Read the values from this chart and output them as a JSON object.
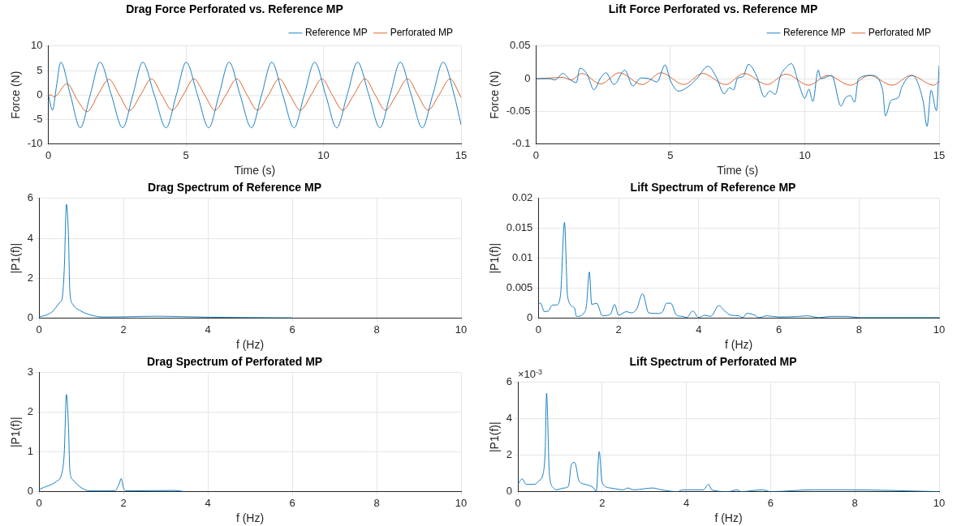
{
  "chart_data": [
    {
      "type": "line",
      "title": "Drag Force Perforated vs. Reference MP",
      "xlabel": "Time (s)",
      "ylabel": "Force (N)",
      "xlim": [
        0,
        15
      ],
      "xticks": [
        0,
        5,
        10,
        15
      ],
      "ylim": [
        -10,
        10
      ],
      "yticks": [
        -10,
        -5,
        0,
        5,
        10
      ],
      "grid": true,
      "legend": "top right",
      "series": [
        {
          "name": "Reference MP",
          "color": "#0072bd",
          "x": [
            0,
            0.15,
            0.3,
            0.45,
            0.8,
            1.16,
            1.52,
            1.88,
            2.29,
            2.7,
            3.07,
            3.43,
            3.85,
            4.28,
            4.65,
            5.01,
            5.42,
            5.83,
            6.2,
            6.57,
            6.97,
            7.38,
            7.75,
            8.12,
            8.52,
            8.93,
            9.3,
            9.68,
            10.08,
            10.48,
            10.86,
            11.24,
            11.65,
            12.05,
            12.42,
            12.79,
            13.19,
            13.59,
            13.97,
            14.35,
            14.75,
            15
          ],
          "values": [
            0,
            -3.1,
            2,
            6.7,
            0,
            -6.7,
            0,
            6.7,
            0,
            -6.7,
            0,
            6.7,
            0,
            -6.7,
            0,
            6.7,
            0,
            -6.7,
            0,
            6.7,
            0,
            -6.7,
            0,
            6.7,
            0,
            -6.7,
            0,
            6.7,
            0,
            -6.7,
            0,
            6.7,
            0,
            -6.7,
            0,
            6.7,
            0,
            -6.7,
            0,
            6.7,
            0,
            -6.1
          ]
        },
        {
          "name": "Perforated MP",
          "color": "#d95319",
          "x": [
            0,
            0.1,
            0.2,
            0.68,
            1.05,
            1.41,
            1.8,
            2.2,
            2.58,
            2.95,
            3.35,
            3.75,
            4.12,
            4.5,
            4.9,
            5.29,
            5.68,
            6.06,
            6.45,
            6.85,
            7.22,
            7.6,
            8.0,
            8.39,
            8.78,
            9.16,
            9.55,
            9.94,
            10.32,
            10.7,
            11.1,
            11.51,
            11.88,
            12.25,
            12.65,
            13.06,
            13.43,
            13.8,
            14.2,
            14.6,
            15
          ],
          "values": [
            0,
            0,
            -0.4,
            2.3,
            -1,
            -3.4,
            0,
            3.2,
            0,
            -3.2,
            0,
            3.3,
            0,
            -3.1,
            0,
            3.3,
            0,
            -3.1,
            0,
            3.3,
            0,
            -3.1,
            0,
            3.3,
            0,
            -3.1,
            0,
            3.3,
            0,
            -3.1,
            0,
            3.3,
            0,
            -3.1,
            0,
            3.3,
            0,
            -3.1,
            0,
            3.3,
            -0.5
          ]
        }
      ]
    },
    {
      "type": "line",
      "title": "Lift Force Perforated vs. Reference MP",
      "xlabel": "Time (s)",
      "ylabel": "Force (N)",
      "xlim": [
        0,
        15
      ],
      "xticks": [
        0,
        5,
        10,
        15
      ],
      "ylim": [
        -0.1,
        0.05
      ],
      "yticks": [
        -0.1,
        -0.05,
        0,
        0.05
      ],
      "grid": true,
      "legend": "top right",
      "series": [
        {
          "name": "Reference MP",
          "color": "#0072bd",
          "x": [
            0,
            0.5,
            0.7,
            1.0,
            1.25,
            1.5,
            1.63,
            1.9,
            2.15,
            2.4,
            2.6,
            2.9,
            3.3,
            3.6,
            3.9,
            4.2,
            4.5,
            4.8,
            5.0,
            5.3,
            5.7,
            6.0,
            6.4,
            6.7,
            7.0,
            7.2,
            7.35,
            7.5,
            7.7,
            7.9,
            8.2,
            8.5,
            8.7,
            8.9,
            9.1,
            9.3,
            9.5,
            9.8,
            10.0,
            10.15,
            10.3,
            10.5,
            10.6,
            11.0,
            11.35,
            11.5,
            11.7,
            11.85,
            12.0,
            12.5,
            12.9,
            13.0,
            13.2,
            13.5,
            13.6,
            14.0,
            14.4,
            14.55,
            14.7,
            14.9,
            15
          ],
          "values": [
            0,
            0,
            -0.002,
            0.008,
            -0.001,
            -0.006,
            0.016,
            0.007,
            -0.017,
            0.001,
            0.009,
            -0.009,
            0.013,
            -0.011,
            0.001,
            0,
            -0.005,
            0.021,
            -0.003,
            -0.019,
            -0.011,
            0.001,
            0.019,
            0.003,
            -0.023,
            -0.014,
            -0.017,
            0.001,
            0.003,
            0.022,
            0.005,
            -0.028,
            -0.019,
            -0.024,
            0.005,
            0.017,
            0.023,
            -0.011,
            -0.03,
            -0.016,
            -0.035,
            0.013,
            0,
            0.005,
            -0.042,
            -0.03,
            -0.026,
            -0.036,
            0,
            0.005,
            -0.018,
            -0.057,
            -0.034,
            -0.028,
            -0.014,
            0.005,
            -0.034,
            -0.073,
            -0.018,
            -0.049,
            0.02
          ]
        },
        {
          "name": "Perforated MP",
          "color": "#d95319",
          "x": [
            0,
            0.5,
            1.0,
            1.3,
            1.7,
            2.4,
            3.1,
            3.95,
            4.65,
            5.5,
            6.2,
            7.05,
            7.75,
            8.6,
            9.3,
            10.15,
            10.85,
            11.7,
            12.4,
            13.25,
            13.95,
            14.8,
            15
          ],
          "values": [
            0,
            0.001,
            0.002,
            -0.002,
            0.008,
            -0.008,
            0.009,
            -0.009,
            0.009,
            -0.009,
            0.008,
            -0.009,
            0.008,
            -0.009,
            0.007,
            -0.01,
            0.005,
            -0.01,
            0.005,
            -0.01,
            0.005,
            -0.01,
            -0.004
          ]
        }
      ]
    },
    {
      "type": "line",
      "title": "Drag Spectrum of Reference MP",
      "xlabel": "f (Hz)",
      "ylabel": "|P1(f)|",
      "xlim": [
        0,
        10
      ],
      "xticks": [
        0,
        2,
        4,
        6,
        8,
        10
      ],
      "ylim": [
        0,
        6
      ],
      "yticks": [
        0,
        2,
        4,
        6
      ],
      "grid": true,
      "x": [
        0,
        0.3,
        0.5,
        0.55,
        0.6,
        0.65,
        0.7,
        0.73,
        0.8,
        1.0,
        1.3,
        1.5,
        2,
        2.8,
        4,
        6
      ],
      "series": [
        {
          "color": "#0072bd",
          "values": [
            0.05,
            0.3,
            0.8,
            1.0,
            2.5,
            5.7,
            4,
            1.4,
            0.7,
            0.35,
            0.12,
            0.06,
            0.07,
            0.1,
            0.05,
            0.02
          ]
        }
      ]
    },
    {
      "type": "line",
      "title": "Lift Spectrum of Reference MP",
      "xlabel": "f (Hz)",
      "ylabel": "|P1(f)|",
      "xlim": [
        0,
        10
      ],
      "xticks": [
        0,
        2,
        4,
        6,
        8,
        10
      ],
      "ylim": [
        0,
        0.02
      ],
      "yticks": [
        0,
        0.005,
        0.01,
        0.015,
        0.02
      ],
      "grid": true,
      "x": [
        0,
        0.05,
        0.15,
        0.25,
        0.35,
        0.45,
        0.55,
        0.65,
        0.73,
        0.9,
        0.95,
        1.15,
        1.2,
        1.27,
        1.33,
        1.45,
        1.6,
        1.8,
        1.9,
        2.0,
        2.2,
        2.3,
        2.45,
        2.6,
        2.75,
        2.9,
        3.0,
        3.1,
        3.2,
        3.3,
        3.45,
        3.6,
        3.7,
        3.85,
        4.0,
        4.15,
        4.3,
        4.5,
        4.65,
        4.8,
        5.0,
        5.1,
        5.2,
        5.4,
        5.5,
        5.7,
        6.0,
        6.5,
        6.7,
        7.0,
        7.3,
        7.7,
        8.0,
        9.0,
        10
      ],
      "series": [
        {
          "color": "#0072bd",
          "values": [
            0.0025,
            0.0025,
            0.0011,
            0.0012,
            0.0022,
            0.0022,
            0.0038,
            0.016,
            0.0035,
            0.0017,
            0.0003,
            0.001,
            0.0022,
            0.0077,
            0.0023,
            0.0025,
            0.0004,
            0.0007,
            0.0023,
            0.0005,
            0.0011,
            0.0009,
            0.0015,
            0.0041,
            0.0009,
            0.0008,
            0.0008,
            0.0011,
            0.0025,
            0.0025,
            0.0005,
            0.0003,
            0.0001,
            0.0012,
            0.0001,
            0.0005,
            0.0003,
            0.0021,
            0.0012,
            0.0005,
            0.0004,
            0.0001,
            0.0008,
            0.0005,
            0.0001,
            0.0004,
            0.0002,
            0.0003,
            0.0004,
            0.0001,
            0.0003,
            0.0003,
            0.0001,
            0.0001,
            0.0001
          ]
        }
      ]
    },
    {
      "type": "line",
      "title": "Drag Spectrum of Perforated MP",
      "xlabel": "f (Hz)",
      "ylabel": "|P1(f)|",
      "xlim": [
        0,
        10
      ],
      "xticks": [
        0,
        2,
        4,
        6,
        8,
        10
      ],
      "ylim": [
        0,
        3
      ],
      "yticks": [
        0,
        1,
        2,
        3
      ],
      "grid": true,
      "x": [
        0,
        0.1,
        0.4,
        0.55,
        0.6,
        0.65,
        0.7,
        0.73,
        0.8,
        1.0,
        1.2,
        1.4,
        1.8,
        1.9,
        1.95,
        2.0,
        2.05,
        3.2,
        3.4
      ],
      "series": [
        {
          "color": "#0072bd",
          "values": [
            0.05,
            0.1,
            0.25,
            0.5,
            1.0,
            2.45,
            1.6,
            0.55,
            0.3,
            0.1,
            0.02,
            0.02,
            0.02,
            0.2,
            0.33,
            0.1,
            0.02,
            0.03,
            0.01
          ]
        }
      ]
    },
    {
      "type": "line",
      "title": "Lift Spectrum of Perforated MP",
      "xlabel": "f (Hz)",
      "ylabel": "|P1(f)|",
      "xlim": [
        0,
        10
      ],
      "xticks": [
        0,
        2,
        4,
        6,
        8,
        10
      ],
      "ylim": [
        0,
        6
      ],
      "yticks": [
        0,
        2,
        4,
        6
      ],
      "grid": true,
      "annotations": [
        "×10$^{-3}$"
      ],
      "x": [
        0,
        0.1,
        0.2,
        0.4,
        0.5,
        0.6,
        0.65,
        0.68,
        0.75,
        0.85,
        0.9,
        1.1,
        1.2,
        1.27,
        1.35,
        1.45,
        1.6,
        1.8,
        1.86,
        1.93,
        2.0,
        2.2,
        2.5,
        2.6,
        2.75,
        3.2,
        3.4,
        3.8,
        3.9,
        4.0,
        4.4,
        4.53,
        4.6,
        5.0,
        5.2,
        5.3,
        5.8,
        6.0,
        7.0,
        7.8,
        10
      ],
      "series": [
        {
          "color": "#0072bd",
          "values": [
            0.4,
            0.7,
            0.4,
            0.4,
            0.6,
            1,
            2.4,
            5.4,
            0.9,
            0.2,
            0.1,
            0.2,
            0.3,
            1.5,
            1.6,
            0.6,
            0.4,
            0.2,
            0,
            2.2,
            0.5,
            0.2,
            0.1,
            0.2,
            0.1,
            0.2,
            0.1,
            0,
            0.1,
            0.1,
            0.1,
            0.4,
            0.1,
            0,
            0.1,
            0,
            0.1,
            0,
            0.1,
            0.1,
            0
          ]
        }
      ]
    }
  ]
}
